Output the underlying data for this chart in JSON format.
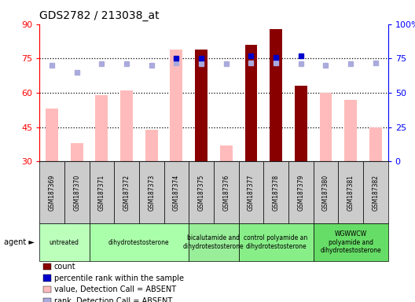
{
  "title": "GDS2782 / 213038_at",
  "samples": [
    "GSM187369",
    "GSM187370",
    "GSM187371",
    "GSM187372",
    "GSM187373",
    "GSM187374",
    "GSM187375",
    "GSM187376",
    "GSM187377",
    "GSM187378",
    "GSM187379",
    "GSM187380",
    "GSM187381",
    "GSM187382"
  ],
  "count_values": [
    null,
    null,
    null,
    null,
    null,
    null,
    79,
    null,
    81,
    88,
    63,
    null,
    null,
    null
  ],
  "absent_value": [
    53,
    38,
    59,
    61,
    44,
    79,
    31,
    37,
    31,
    31,
    31,
    60,
    57,
    45
  ],
  "rank_absent": [
    70,
    65,
    71,
    71,
    70,
    72,
    71,
    71,
    72,
    72,
    71,
    70,
    71,
    72
  ],
  "rank_present": [
    null,
    null,
    null,
    null,
    null,
    75,
    75,
    null,
    77,
    76,
    77,
    null,
    null,
    null
  ],
  "left_ylim": [
    30,
    90
  ],
  "left_yticks": [
    30,
    45,
    60,
    75,
    90
  ],
  "right_ylim": [
    0,
    100
  ],
  "right_yticks": [
    0,
    25,
    50,
    75,
    100
  ],
  "right_yticklabels": [
    "0",
    "25",
    "50",
    "75",
    "100%"
  ],
  "agents": [
    {
      "label": "untreated",
      "samples": [
        0,
        1
      ],
      "color": "#bbffbb"
    },
    {
      "label": "dihydrotestosterone",
      "samples": [
        2,
        3,
        4,
        5
      ],
      "color": "#aaffaa"
    },
    {
      "label": "bicalutamide and\ndihydrotestosterone",
      "samples": [
        6,
        7
      ],
      "color": "#99ee99"
    },
    {
      "label": "control polyamide an\ndihydrotestosterone",
      "samples": [
        8,
        9,
        10
      ],
      "color": "#88ee88"
    },
    {
      "label": "WGWWCW\npolyamide and\ndihydrotestosterone",
      "samples": [
        11,
        12,
        13
      ],
      "color": "#66dd66"
    }
  ],
  "bar_width": 0.5,
  "count_color": "#880000",
  "absent_bar_color": "#ffbbbb",
  "rank_absent_color": "#aaaadd",
  "rank_present_color": "#0000cc",
  "dotted_line_color": "black",
  "sample_box_color": "#cccccc",
  "legend_items": [
    {
      "color": "#880000",
      "label": "count"
    },
    {
      "color": "#0000cc",
      "label": "percentile rank within the sample"
    },
    {
      "color": "#ffbbbb",
      "label": "value, Detection Call = ABSENT"
    },
    {
      "color": "#aaaadd",
      "label": "rank, Detection Call = ABSENT"
    }
  ]
}
